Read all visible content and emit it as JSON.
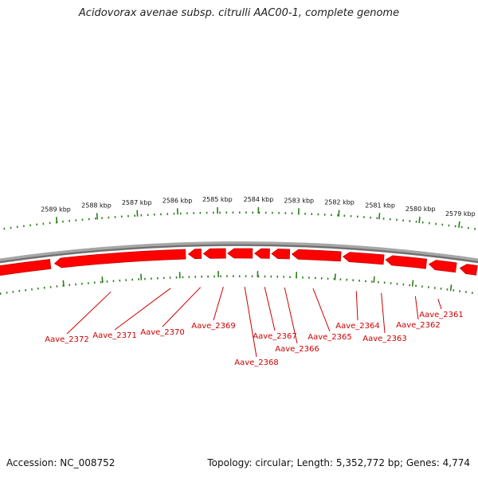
{
  "title": "Acidovorax avenae subsp. citrulli AAC00-1, complete genome",
  "accession": "Accession: NC_008752",
  "summary": "Topology: circular; Length: 5,352,772 bp; Genes: 4,774",
  "colors": {
    "gene": "#ff0000",
    "gene_dark": "#cc0000",
    "tick": "#2e7d1f",
    "backbone": "#888888"
  },
  "position_ticks": [
    "2579 kbp",
    "2580 kbp",
    "2581 kbp",
    "2582 kbp",
    "2583 kbp",
    "2584 kbp",
    "2585 kbp",
    "2586 kbp",
    "2587 kbp",
    "2588 kbp",
    "2589 kbp"
  ],
  "genes": [
    "Aave_2361",
    "Aave_2362",
    "Aave_2363",
    "Aave_2364",
    "Aave_2365",
    "Aave_2366",
    "Aave_2367",
    "Aave_2368",
    "Aave_2369",
    "Aave_2370",
    "Aave_2371",
    "Aave_2372"
  ]
}
